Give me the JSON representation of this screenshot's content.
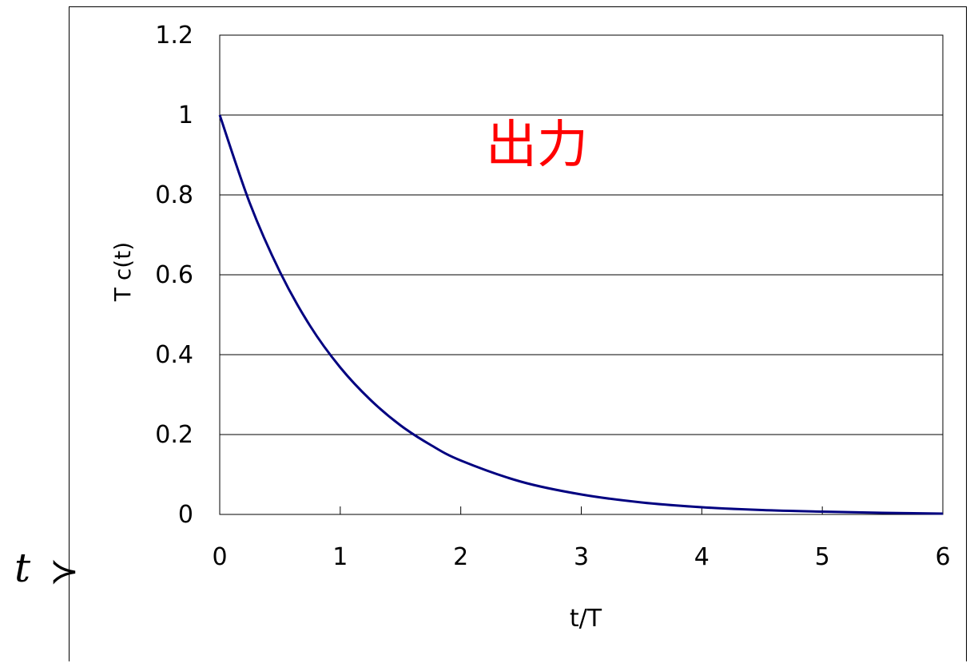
{
  "chart_data": {
    "type": "line",
    "title": "",
    "annotation": "出力",
    "xlabel": "t/T",
    "ylabel": "T c(t)",
    "xlim": [
      0,
      6
    ],
    "ylim": [
      0,
      1.2
    ],
    "x_ticks": [
      "0",
      "1",
      "2",
      "3",
      "4",
      "5",
      "6"
    ],
    "y_ticks": [
      "0",
      "0.2",
      "0.4",
      "0.6",
      "0.8",
      "1",
      "1.2"
    ],
    "grid": "horizontal",
    "series": [
      {
        "color": "#000080",
        "x": [
          0,
          0.25,
          0.5,
          0.75,
          1,
          1.25,
          1.5,
          1.75,
          2,
          2.5,
          3,
          3.5,
          4,
          4.5,
          5,
          5.5,
          6
        ],
        "y": [
          1,
          0.779,
          0.607,
          0.472,
          0.368,
          0.287,
          0.223,
          0.174,
          0.135,
          0.082,
          0.05,
          0.03,
          0.018,
          0.011,
          0.007,
          0.004,
          0.002
        ]
      }
    ],
    "colors": {
      "line": "#000080",
      "annotation": "#ff0000",
      "grid": "#000000"
    }
  },
  "left_fragment": {
    "glyph": "t",
    "partial": "≻"
  }
}
